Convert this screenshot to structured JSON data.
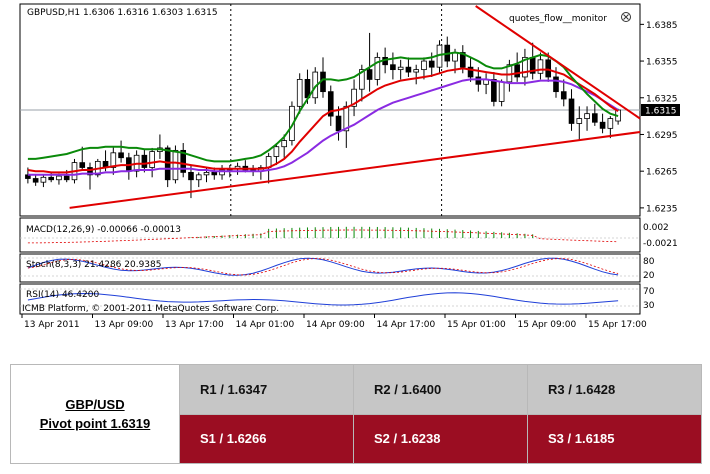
{
  "chart_data": {
    "type": "candlestick",
    "title": "GBPUSD,H1  1.6306 1.6316 1.6303 1.6315",
    "watermark": "quotes_flow__monitor",
    "symbol": "GBPUSD",
    "timeframe": "H1",
    "ohlc_header": {
      "open": 1.6306,
      "high": 1.6316,
      "low": 1.6303,
      "close": 1.6315
    },
    "price_axis": {
      "ticks": [
        "1.6385",
        "1.6355",
        "1.6325",
        "1.6315",
        "1.6295",
        "1.6265",
        "1.6235"
      ],
      "current": "1.6315",
      "ylim": [
        1.623,
        1.64
      ]
    },
    "time_axis": {
      "labels": [
        "13 Apr 2011",
        "13 Apr 09:00",
        "13 Apr 17:00",
        "14 Apr 01:00",
        "14 Apr 09:00",
        "14 Apr 17:00",
        "15 Apr 01:00",
        "15 Apr 09:00",
        "15 Apr 17:00"
      ]
    },
    "candles": [
      [
        1.6262,
        1.6268,
        1.6255,
        1.6259
      ],
      [
        1.6259,
        1.6262,
        1.6253,
        1.6256
      ],
      [
        1.6256,
        1.6262,
        1.6252,
        1.626
      ],
      [
        1.626,
        1.6264,
        1.6256,
        1.6258
      ],
      [
        1.6258,
        1.6263,
        1.6254,
        1.6261
      ],
      [
        1.6261,
        1.6266,
        1.6256,
        1.6258
      ],
      [
        1.6258,
        1.6275,
        1.6255,
        1.6272
      ],
      [
        1.6272,
        1.6285,
        1.6266,
        1.6268
      ],
      [
        1.6268,
        1.6272,
        1.625,
        1.6262
      ],
      [
        1.6262,
        1.6275,
        1.626,
        1.6273
      ],
      [
        1.6273,
        1.6282,
        1.6265,
        1.6268
      ],
      [
        1.6268,
        1.6285,
        1.6262,
        1.628
      ],
      [
        1.628,
        1.629,
        1.6272,
        1.6276
      ],
      [
        1.6276,
        1.628,
        1.6258,
        1.6265
      ],
      [
        1.6265,
        1.6282,
        1.626,
        1.6278
      ],
      [
        1.6278,
        1.6283,
        1.6264,
        1.6268
      ],
      [
        1.6268,
        1.6284,
        1.626,
        1.6281
      ],
      [
        1.6281,
        1.6295,
        1.6275,
        1.6284
      ],
      [
        1.6284,
        1.6286,
        1.6252,
        1.6258
      ],
      [
        1.6258,
        1.6286,
        1.6255,
        1.6282
      ],
      [
        1.6282,
        1.6288,
        1.626,
        1.6264
      ],
      [
        1.6264,
        1.627,
        1.6243,
        1.6258
      ],
      [
        1.6258,
        1.6264,
        1.6252,
        1.6262
      ],
      [
        1.6262,
        1.6268,
        1.6256,
        1.6264
      ],
      [
        1.6264,
        1.6268,
        1.6258,
        1.6262
      ],
      [
        1.6262,
        1.627,
        1.6258,
        1.6266
      ],
      [
        1.6266,
        1.627,
        1.626,
        1.6267
      ],
      [
        1.6267,
        1.6272,
        1.6262,
        1.6269
      ],
      [
        1.6269,
        1.6274,
        1.6264,
        1.6266
      ],
      [
        1.6266,
        1.627,
        1.6261,
        1.6265
      ],
      [
        1.6265,
        1.627,
        1.6258,
        1.6268
      ],
      [
        1.6268,
        1.628,
        1.6255,
        1.6277
      ],
      [
        1.6277,
        1.6288,
        1.627,
        1.6285
      ],
      [
        1.6285,
        1.6295,
        1.6276,
        1.629
      ],
      [
        1.629,
        1.6322,
        1.6286,
        1.6318
      ],
      [
        1.6318,
        1.6345,
        1.6312,
        1.634
      ],
      [
        1.634,
        1.6348,
        1.632,
        1.6325
      ],
      [
        1.6325,
        1.635,
        1.632,
        1.6346
      ],
      [
        1.6346,
        1.6358,
        1.6325,
        1.633
      ],
      [
        1.633,
        1.6335,
        1.6302,
        1.631
      ],
      [
        1.631,
        1.6318,
        1.629,
        1.6298
      ],
      [
        1.6298,
        1.6322,
        1.6284,
        1.6318
      ],
      [
        1.6318,
        1.634,
        1.631,
        1.6332
      ],
      [
        1.6332,
        1.6352,
        1.6322,
        1.6348
      ],
      [
        1.6348,
        1.6378,
        1.633,
        1.634
      ],
      [
        1.634,
        1.6362,
        1.6335,
        1.6358
      ],
      [
        1.6358,
        1.6366,
        1.6345,
        1.6352
      ],
      [
        1.6352,
        1.6362,
        1.634,
        1.6348
      ],
      [
        1.6348,
        1.6356,
        1.634,
        1.635
      ],
      [
        1.635,
        1.6358,
        1.6342,
        1.6346
      ],
      [
        1.6346,
        1.6352,
        1.6336,
        1.6348
      ],
      [
        1.6348,
        1.6358,
        1.634,
        1.6355
      ],
      [
        1.6355,
        1.6362,
        1.6342,
        1.635
      ],
      [
        1.635,
        1.6372,
        1.6345,
        1.6368
      ],
      [
        1.6368,
        1.6375,
        1.635,
        1.6355
      ],
      [
        1.6355,
        1.6365,
        1.6345,
        1.6362
      ],
      [
        1.6362,
        1.6368,
        1.6345,
        1.635
      ],
      [
        1.635,
        1.6358,
        1.6338,
        1.6342
      ],
      [
        1.6342,
        1.635,
        1.633,
        1.6336
      ],
      [
        1.6336,
        1.6345,
        1.6328,
        1.634
      ],
      [
        1.634,
        1.6346,
        1.6318,
        1.6322
      ],
      [
        1.6322,
        1.634,
        1.6318,
        1.6338
      ],
      [
        1.6338,
        1.6356,
        1.633,
        1.6352
      ],
      [
        1.6352,
        1.6362,
        1.6338,
        1.6342
      ],
      [
        1.6342,
        1.6365,
        1.6335,
        1.6358
      ],
      [
        1.6358,
        1.637,
        1.634,
        1.6345
      ],
      [
        1.6345,
        1.6362,
        1.634,
        1.6356
      ],
      [
        1.6356,
        1.6362,
        1.6338,
        1.6342
      ],
      [
        1.6342,
        1.635,
        1.6325,
        1.633
      ],
      [
        1.633,
        1.634,
        1.6318,
        1.6324
      ],
      [
        1.6324,
        1.6332,
        1.6298,
        1.6304
      ],
      [
        1.6304,
        1.6318,
        1.629,
        1.6308
      ],
      [
        1.6308,
        1.6318,
        1.6298,
        1.6312
      ],
      [
        1.6312,
        1.632,
        1.6302,
        1.6305
      ],
      [
        1.6305,
        1.6312,
        1.6296,
        1.63
      ],
      [
        1.63,
        1.631,
        1.6292,
        1.6308
      ],
      [
        1.6306,
        1.6316,
        1.6303,
        1.6315
      ]
    ],
    "moving_averages": [
      {
        "name": "green",
        "color": "#0a8a0a",
        "values": [
          1.6275,
          1.6275,
          1.6276,
          1.6277,
          1.6278,
          1.6279,
          1.6281,
          1.6283,
          1.6284,
          1.6284,
          1.6285,
          1.6285,
          1.6285,
          1.6284,
          1.6284,
          1.6283,
          1.6283,
          1.6283,
          1.6282,
          1.6281,
          1.628,
          1.6278,
          1.6276,
          1.6274,
          1.6273,
          1.6273,
          1.6273,
          1.6274,
          1.6275,
          1.6276,
          1.6278,
          1.6282,
          1.6287,
          1.6293,
          1.6302,
          1.6314,
          1.6324,
          1.6334,
          1.634,
          1.634,
          1.6339,
          1.634,
          1.6342,
          1.6346,
          1.635,
          1.6354,
          1.6356,
          1.6357,
          1.6358,
          1.6357,
          1.6357,
          1.6357,
          1.6358,
          1.636,
          1.6361,
          1.6362,
          1.6361,
          1.6358,
          1.6355,
          1.6351,
          1.6349,
          1.6349,
          1.6351,
          1.6353,
          1.6356,
          1.6358,
          1.636,
          1.6359,
          1.6355,
          1.635,
          1.6342,
          1.6335,
          1.6328,
          1.6322,
          1.6316,
          1.6312,
          1.631
        ]
      },
      {
        "name": "red",
        "color": "#e00000",
        "values": [
          1.6266,
          1.6265,
          1.6265,
          1.6264,
          1.6264,
          1.6264,
          1.6265,
          1.6266,
          1.6266,
          1.6267,
          1.6268,
          1.6269,
          1.627,
          1.627,
          1.6271,
          1.6271,
          1.6272,
          1.6273,
          1.6272,
          1.6272,
          1.6271,
          1.627,
          1.6269,
          1.6268,
          1.6267,
          1.6267,
          1.6267,
          1.6267,
          1.6267,
          1.6267,
          1.6267,
          1.6268,
          1.6271,
          1.6275,
          1.6281,
          1.6289,
          1.6296,
          1.6303,
          1.631,
          1.6314,
          1.6315,
          1.6317,
          1.632,
          1.6324,
          1.6328,
          1.6332,
          1.6335,
          1.6337,
          1.6339,
          1.634,
          1.6341,
          1.6342,
          1.6343,
          1.6345,
          1.6347,
          1.6348,
          1.6349,
          1.6348,
          1.6347,
          1.6346,
          1.6345,
          1.6344,
          1.6344,
          1.6345,
          1.6346,
          1.6347,
          1.6348,
          1.6348,
          1.6346,
          1.6344,
          1.634,
          1.6336,
          1.6332,
          1.6328,
          1.6323,
          1.6318,
          1.6314
        ]
      },
      {
        "name": "purple",
        "color": "#8a2be2",
        "values": [
          1.6262,
          1.6262,
          1.6262,
          1.6262,
          1.6262,
          1.6262,
          1.6262,
          1.6263,
          1.6263,
          1.6263,
          1.6264,
          1.6264,
          1.6265,
          1.6265,
          1.6266,
          1.6266,
          1.6266,
          1.6267,
          1.6267,
          1.6267,
          1.6267,
          1.6267,
          1.6266,
          1.6266,
          1.6265,
          1.6265,
          1.6265,
          1.6265,
          1.6265,
          1.6265,
          1.6265,
          1.6266,
          1.6267,
          1.6269,
          1.6272,
          1.6276,
          1.628,
          1.6285,
          1.629,
          1.6294,
          1.6297,
          1.63,
          1.6303,
          1.6307,
          1.6311,
          1.6315,
          1.6318,
          1.6321,
          1.6323,
          1.6325,
          1.6327,
          1.6329,
          1.6331,
          1.6333,
          1.6335,
          1.6337,
          1.6339,
          1.634,
          1.634,
          1.634,
          1.6339,
          1.6338,
          1.6337,
          1.6337,
          1.6337,
          1.6338,
          1.6339,
          1.6339,
          1.6339,
          1.6338,
          1.6336,
          1.6333,
          1.633,
          1.6327,
          1.6323,
          1.6319,
          1.6315
        ]
      }
    ],
    "trendlines": [
      {
        "from": [
          0.08,
          1.6235
        ],
        "to": [
          1.0,
          1.6297
        ],
        "color": "#e00000"
      },
      {
        "from": [
          0.735,
          1.64
        ],
        "to": [
          1.0,
          1.6308
        ],
        "color": "#e00000"
      }
    ],
    "indicators": {
      "macd": {
        "label": "MACD(12,26,9) -0.00066 -0.00013",
        "ticks": [
          "0.002",
          "-0.0021"
        ]
      },
      "stoch": {
        "label": "Stoch(8,3,3) 21.4286 20.9385",
        "ticks": [
          "80",
          "20"
        ]
      },
      "rsi": {
        "label": "RSI(14) 46.4200",
        "ticks": [
          "70",
          "30"
        ]
      }
    },
    "copyright": "ICMB Platform, © 2001-2011 MetaQuotes Software Corp."
  },
  "pivot_table": {
    "pair": "GBP/USD",
    "pivot": "Pivot point 1.6319",
    "resistance": [
      "R1 / 1.6347",
      "R2 / 1.6400",
      "R3 / 1.6428"
    ],
    "support": [
      "S1 / 1.6266",
      "S2 / 1.6238",
      "S3 / 1.6185"
    ]
  }
}
